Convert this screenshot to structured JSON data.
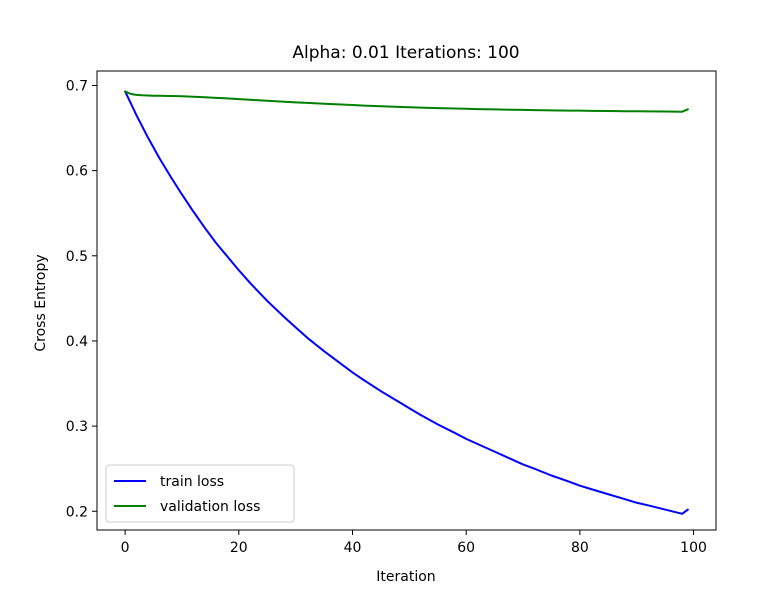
{
  "chart_data": {
    "type": "line",
    "title": "Alpha: 0.01 Iterations: 100",
    "xlabel": "Iteration",
    "ylabel": "Cross Entropy",
    "xlim": [
      -4.95,
      103.95
    ],
    "ylim": [
      0.178,
      0.717
    ],
    "xticks": [
      0,
      20,
      40,
      60,
      80,
      100
    ],
    "yticks": [
      0.2,
      0.3,
      0.4,
      0.5,
      0.6,
      0.7
    ],
    "xtick_labels": [
      "0",
      "20",
      "40",
      "60",
      "80",
      "100"
    ],
    "ytick_labels": [
      "0.2",
      "0.3",
      "0.4",
      "0.5",
      "0.6",
      "0.7"
    ],
    "grid": false,
    "legend_position": "lower-left",
    "x": [
      0,
      1,
      2,
      3,
      4,
      5,
      6,
      8,
      10,
      12,
      14,
      16,
      18,
      20,
      22,
      25,
      28,
      30,
      32,
      35,
      38,
      40,
      42,
      45,
      48,
      50,
      52,
      55,
      58,
      60,
      62,
      65,
      68,
      70,
      72,
      75,
      78,
      80,
      82,
      85,
      88,
      90,
      92,
      95,
      98,
      99
    ],
    "series": [
      {
        "name": "train loss",
        "color": "#0000ff",
        "values": [
          0.693,
          0.679,
          0.665,
          0.652,
          0.639,
          0.627,
          0.615,
          0.593,
          0.572,
          0.552,
          0.533,
          0.515,
          0.499,
          0.483,
          0.468,
          0.447,
          0.428,
          0.416,
          0.404,
          0.388,
          0.373,
          0.363,
          0.354,
          0.341,
          0.329,
          0.321,
          0.313,
          0.302,
          0.292,
          0.285,
          0.279,
          0.27,
          0.261,
          0.255,
          0.25,
          0.242,
          0.235,
          0.23,
          0.226,
          0.22,
          0.214,
          0.21,
          0.207,
          0.202,
          0.197,
          0.202
        ]
      },
      {
        "name": "validation loss",
        "color": "#008000",
        "values": [
          0.693,
          0.69,
          0.689,
          0.6885,
          0.6882,
          0.688,
          0.6879,
          0.6876,
          0.6873,
          0.6868,
          0.6862,
          0.6855,
          0.6848,
          0.684,
          0.6832,
          0.682,
          0.6809,
          0.6802,
          0.6795,
          0.6785,
          0.6776,
          0.677,
          0.6764,
          0.6756,
          0.6749,
          0.6745,
          0.674,
          0.6734,
          0.6729,
          0.6726,
          0.6723,
          0.6719,
          0.6715,
          0.6713,
          0.6711,
          0.6708,
          0.6705,
          0.6704,
          0.6702,
          0.67,
          0.6698,
          0.6697,
          0.6696,
          0.6694,
          0.6692,
          0.672
        ]
      }
    ]
  }
}
